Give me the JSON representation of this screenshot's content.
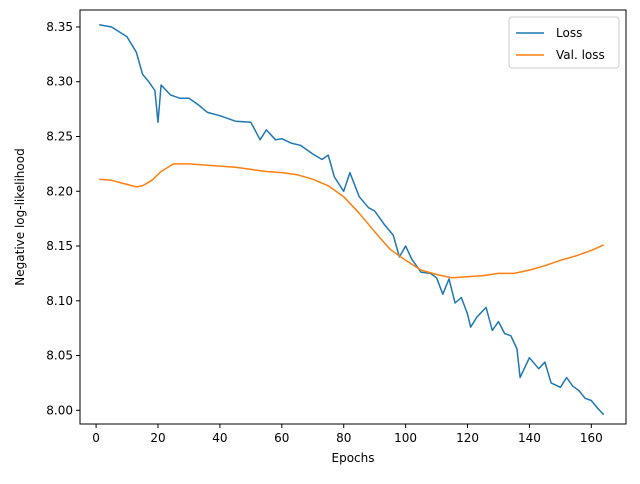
{
  "chart_data": {
    "type": "line",
    "title": "",
    "xlabel": "Epochs",
    "ylabel": "Negative log-likelihood",
    "xlim": [
      -5.2,
      171.2
    ],
    "ylim": [
      7.9875,
      8.3655
    ],
    "xticks": [
      0,
      20,
      40,
      60,
      80,
      100,
      120,
      140,
      160
    ],
    "yticks": [
      8.0,
      8.05,
      8.1,
      8.15,
      8.2,
      8.25,
      8.3,
      8.35
    ],
    "ytick_labels": [
      "8.00",
      "8.05",
      "8.10",
      "8.15",
      "8.20",
      "8.25",
      "8.30",
      "8.35"
    ],
    "grid": false,
    "legend_position": "top-right",
    "series": [
      {
        "name": "Loss",
        "color": "#1f77b4",
        "x": [
          1,
          5,
          10,
          13,
          15,
          17,
          19,
          20,
          21,
          24,
          27,
          30,
          33,
          36,
          40,
          45,
          50,
          53,
          55,
          58,
          60,
          63,
          66,
          70,
          73,
          75,
          77,
          80,
          82,
          85,
          88,
          90,
          93,
          96,
          98,
          100,
          102,
          105,
          108,
          110,
          112,
          114,
          116,
          118,
          120,
          121,
          123,
          126,
          128,
          130,
          132,
          134,
          136,
          137,
          140,
          143,
          145,
          147,
          150,
          152,
          154,
          156,
          158,
          160,
          162,
          164
        ],
        "y": [
          8.352,
          8.35,
          8.341,
          8.327,
          8.307,
          8.3,
          8.292,
          8.263,
          8.297,
          8.288,
          8.285,
          8.285,
          8.279,
          8.272,
          8.269,
          8.264,
          8.263,
          8.247,
          8.256,
          8.247,
          8.248,
          8.244,
          8.242,
          8.234,
          8.229,
          8.233,
          8.213,
          8.2,
          8.217,
          8.195,
          8.185,
          8.182,
          8.17,
          8.16,
          8.14,
          8.15,
          8.138,
          8.126,
          8.125,
          8.121,
          8.106,
          8.12,
          8.098,
          8.103,
          8.088,
          8.076,
          8.085,
          8.094,
          8.073,
          8.081,
          8.07,
          8.068,
          8.056,
          8.03,
          8.048,
          8.038,
          8.044,
          8.025,
          8.021,
          8.03,
          8.022,
          8.018,
          8.011,
          8.009,
          8.002,
          7.996
        ]
      },
      {
        "name": "Val. loss",
        "color": "#ff7f0e",
        "x": [
          1,
          5,
          9,
          13,
          15,
          18,
          21,
          25,
          30,
          35,
          40,
          45,
          50,
          55,
          60,
          65,
          70,
          75,
          80,
          85,
          90,
          95,
          100,
          105,
          110,
          115,
          120,
          125,
          130,
          135,
          140,
          145,
          150,
          155,
          160,
          164
        ],
        "y": [
          8.211,
          8.21,
          8.207,
          8.204,
          8.205,
          8.21,
          8.218,
          8.225,
          8.225,
          8.224,
          8.223,
          8.222,
          8.22,
          8.218,
          8.217,
          8.215,
          8.211,
          8.205,
          8.195,
          8.18,
          8.163,
          8.147,
          8.137,
          8.128,
          8.124,
          8.121,
          8.122,
          8.123,
          8.125,
          8.125,
          8.128,
          8.132,
          8.137,
          8.141,
          8.146,
          8.151
        ]
      }
    ]
  }
}
